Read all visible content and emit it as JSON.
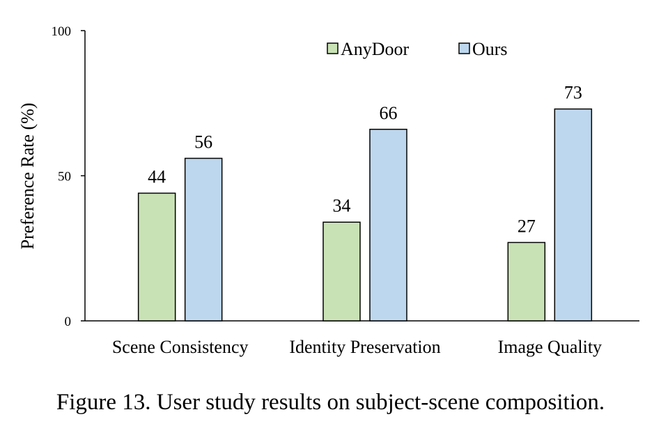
{
  "caption": "Figure 13. User study results on subject-scene composition.",
  "chart_data": {
    "type": "bar",
    "categories": [
      "Scene Consistency",
      "Identity Preservation",
      "Image Quality"
    ],
    "series": [
      {
        "name": "AnyDoor",
        "values": [
          44,
          34,
          27
        ],
        "color": "#c9e2b5"
      },
      {
        "name": "Ours",
        "values": [
          56,
          66,
          73
        ],
        "color": "#bdd7ee"
      }
    ],
    "ylabel": "Preference Rate (%)",
    "xlabel": "",
    "ylim": [
      0,
      100
    ],
    "yticks": [
      0,
      50,
      100
    ],
    "grid": false,
    "legend_position": "top-right",
    "data_labels": true
  }
}
